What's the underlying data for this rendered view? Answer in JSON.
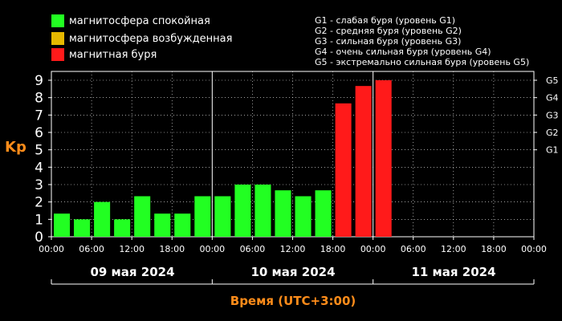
{
  "legend": [
    {
      "label": "магнитосфера спокойная",
      "color": "#22ff22"
    },
    {
      "label": "магнитосфера возбужденная",
      "color": "#e6b800"
    },
    {
      "label": "магнитная буря",
      "color": "#ff1a1a"
    }
  ],
  "g_legend": [
    "G1 - слабая буря (уровень G1)",
    "G2 - средняя буря (уровень G2)",
    "G3 - сильная буря (уровень G3)",
    "G4 - очень сильная буря (уровень G4)",
    "G5 - экстремально сильная буря (уровень G5)"
  ],
  "colors": {
    "background": "#000000",
    "axis": "#ffffff",
    "grid": "#ffffff",
    "title": "#ff8c1a"
  },
  "chart_data": {
    "type": "bar",
    "ylabel": "Kp",
    "xlabel": "Время (UTC+3:00)",
    "ylim": [
      0,
      9
    ],
    "grid": true,
    "y_ticks": [
      "0",
      "1",
      "2",
      "3",
      "4",
      "5",
      "6",
      "7",
      "8",
      "9"
    ],
    "g_scale": [
      {
        "label": "G1",
        "value": 5
      },
      {
        "label": "G2",
        "value": 6
      },
      {
        "label": "G3",
        "value": 7
      },
      {
        "label": "G4",
        "value": 8
      },
      {
        "label": "G5",
        "value": 9
      }
    ],
    "x_tick_labels": [
      "00:00",
      "06:00",
      "12:00",
      "18:00",
      "00:00",
      "06:00",
      "12:00",
      "18:00",
      "00:00",
      "06:00",
      "12:00",
      "18:00",
      "00:00"
    ],
    "dates": [
      "09 мая 2024",
      "10 мая 2024",
      "11 мая 2024"
    ],
    "slots_per_day": 8,
    "bars": [
      {
        "day": 0,
        "slot": 0,
        "value": 1.33,
        "status": "quiet"
      },
      {
        "day": 0,
        "slot": 1,
        "value": 1.0,
        "status": "quiet"
      },
      {
        "day": 0,
        "slot": 2,
        "value": 2.0,
        "status": "quiet"
      },
      {
        "day": 0,
        "slot": 3,
        "value": 1.0,
        "status": "quiet"
      },
      {
        "day": 0,
        "slot": 4,
        "value": 2.33,
        "status": "quiet"
      },
      {
        "day": 0,
        "slot": 5,
        "value": 1.33,
        "status": "quiet"
      },
      {
        "day": 0,
        "slot": 6,
        "value": 1.33,
        "status": "quiet"
      },
      {
        "day": 0,
        "slot": 7,
        "value": 2.33,
        "status": "quiet"
      },
      {
        "day": 1,
        "slot": 0,
        "value": 2.33,
        "status": "quiet"
      },
      {
        "day": 1,
        "slot": 1,
        "value": 3.0,
        "status": "quiet"
      },
      {
        "day": 1,
        "slot": 2,
        "value": 3.0,
        "status": "quiet"
      },
      {
        "day": 1,
        "slot": 3,
        "value": 2.67,
        "status": "quiet"
      },
      {
        "day": 1,
        "slot": 4,
        "value": 2.33,
        "status": "quiet"
      },
      {
        "day": 1,
        "slot": 5,
        "value": 2.67,
        "status": "quiet"
      },
      {
        "day": 1,
        "slot": 6,
        "value": 7.67,
        "status": "storm"
      },
      {
        "day": 1,
        "slot": 7,
        "value": 8.67,
        "status": "storm"
      },
      {
        "day": 2,
        "slot": 0,
        "value": 9.0,
        "status": "storm"
      }
    ]
  }
}
